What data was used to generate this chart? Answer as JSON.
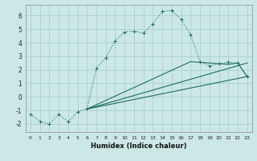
{
  "title": "",
  "xlabel": "Humidex (Indice chaleur)",
  "bg_color": "#cce8e6",
  "grid_color": "#aacfcc",
  "line_color": "#1a6e64",
  "xlim": [
    -0.5,
    23.5
  ],
  "ylim": [
    -2.6,
    6.8
  ],
  "xticks": [
    0,
    1,
    2,
    3,
    4,
    5,
    6,
    7,
    8,
    9,
    10,
    11,
    12,
    13,
    14,
    15,
    16,
    17,
    18,
    19,
    20,
    21,
    22,
    23
  ],
  "yticks": [
    -2,
    -1,
    0,
    1,
    2,
    3,
    4,
    5,
    6
  ],
  "curve1_x": [
    0,
    1,
    2,
    3,
    4,
    5,
    6,
    7,
    8,
    9,
    10,
    11,
    12,
    13,
    14,
    15,
    16,
    17,
    18,
    19,
    20,
    21,
    22,
    23
  ],
  "curve1_y": [
    -1.3,
    -1.8,
    -2.0,
    -1.3,
    -1.85,
    -1.1,
    -0.9,
    2.1,
    2.9,
    4.15,
    4.8,
    4.85,
    4.7,
    5.4,
    6.3,
    6.4,
    5.7,
    4.6,
    2.6,
    2.3,
    2.45,
    2.55,
    2.5,
    1.5
  ],
  "curve2_x": [
    6,
    23
  ],
  "curve2_y": [
    -0.9,
    1.5
  ],
  "curve3_x": [
    6,
    23
  ],
  "curve3_y": [
    -0.9,
    2.5
  ],
  "curve4_x": [
    6,
    17,
    21,
    22,
    23
  ],
  "curve4_y": [
    -0.9,
    2.6,
    2.4,
    2.5,
    1.5
  ]
}
